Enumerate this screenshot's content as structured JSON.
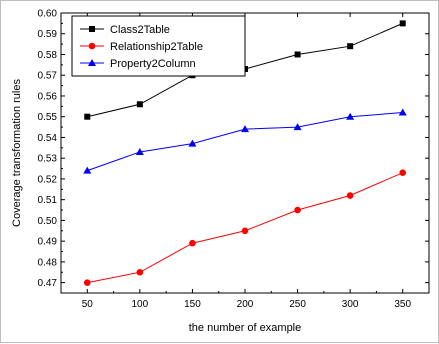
{
  "chart_data": {
    "type": "line",
    "title": "",
    "xlabel": "the number of example",
    "ylabel": "Coverage transformation rules",
    "x": [
      50,
      100,
      150,
      200,
      250,
      300,
      350
    ],
    "xlim": [
      25,
      375
    ],
    "ylim": [
      0.465,
      0.6
    ],
    "yticks": [
      "0.47",
      "0.48",
      "0.49",
      "0.50",
      "0.51",
      "0.52",
      "0.53",
      "0.54",
      "0.55",
      "0.56",
      "0.57",
      "0.58",
      "0.59",
      "0.60"
    ],
    "grid": false,
    "legend_position": "top-left",
    "series": [
      {
        "name": "Class2Table",
        "color": "#000000",
        "marker": "square",
        "values": [
          0.55,
          0.556,
          0.57,
          0.573,
          0.58,
          0.584,
          0.595
        ]
      },
      {
        "name": "Relationship2Table",
        "color": "#ff0000",
        "marker": "circle",
        "values": [
          0.47,
          0.475,
          0.489,
          0.495,
          0.505,
          0.512,
          0.523
        ]
      },
      {
        "name": "Property2Column",
        "color": "#0000ff",
        "marker": "triangle",
        "values": [
          0.524,
          0.533,
          0.537,
          0.544,
          0.545,
          0.55,
          0.552
        ]
      }
    ]
  }
}
